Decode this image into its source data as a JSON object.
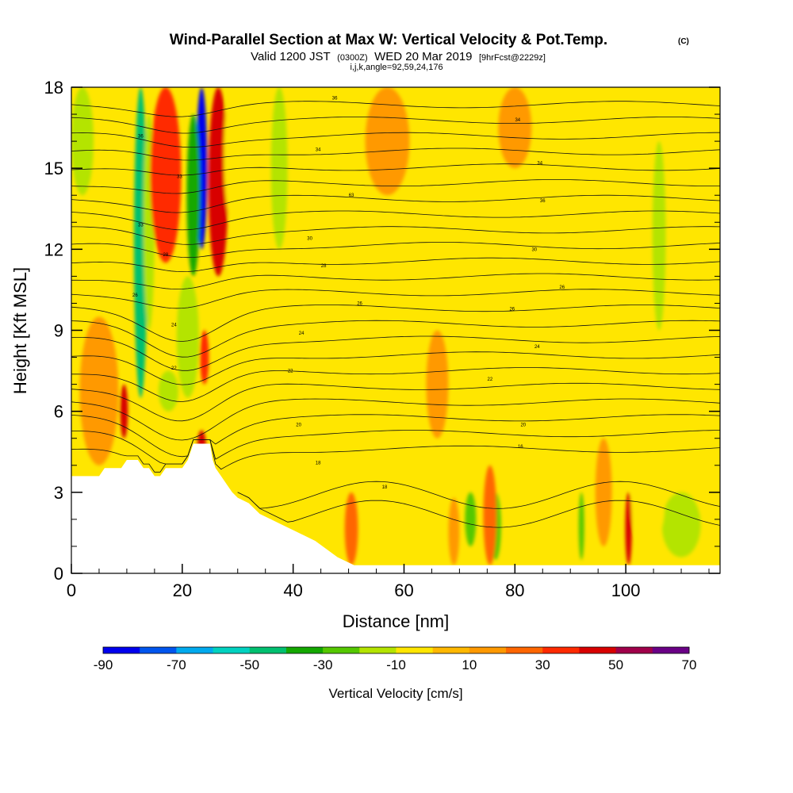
{
  "chart_data": {
    "type": "heatmap",
    "title": "Wind-Parallel Section at Max W: Vertical Velocity & Pot.Temp.",
    "copyright": "(C)",
    "subtitle": {
      "valid_prefix": "Valid 1200 JST",
      "utc": "(0300Z)",
      "date": "WED 20 Mar 2019",
      "forecast": "[9hrFcst@2229z]"
    },
    "indices": "i,j,k,angle=92,59,24,176",
    "xlabel": "Distance [nm]",
    "ylabel": "Height [Kft MSL]",
    "xlim": [
      0,
      117
    ],
    "ylim": [
      0,
      18
    ],
    "x_ticks": [
      "0",
      "20",
      "40",
      "60",
      "80",
      "100"
    ],
    "y_ticks": [
      "0",
      "3",
      "6",
      "9",
      "12",
      "15",
      "18"
    ],
    "colorbar": {
      "label": "Vertical Velocity [cm/s]",
      "tick_labels": [
        "-90",
        "-70",
        "-50",
        "-30",
        "-10",
        "10",
        "30",
        "50",
        "70"
      ],
      "bounds": [
        -90,
        70
      ],
      "colors": [
        "#0000ee",
        "#0055ee",
        "#00aaee",
        "#00d2c0",
        "#00c070",
        "#14a800",
        "#55c800",
        "#b4e400",
        "#ffe600",
        "#ffb800",
        "#ff9900",
        "#ff6600",
        "#ff2a00",
        "#d80000",
        "#a0004a",
        "#6a0086"
      ]
    },
    "terrain_nm_kft": [
      [
        0,
        3.6
      ],
      [
        5,
        3.6
      ],
      [
        6,
        3.9
      ],
      [
        9,
        3.9
      ],
      [
        10,
        4.2
      ],
      [
        12,
        4.2
      ],
      [
        13,
        3.9
      ],
      [
        14,
        3.9
      ],
      [
        15,
        3.6
      ],
      [
        16,
        3.6
      ],
      [
        17,
        3.9
      ],
      [
        20,
        3.9
      ],
      [
        21,
        4.2
      ],
      [
        22,
        4.8
      ],
      [
        25,
        4.8
      ],
      [
        25.5,
        4.2
      ],
      [
        26,
        3.9
      ],
      [
        27,
        3.6
      ],
      [
        28,
        3.3
      ],
      [
        29,
        3.0
      ],
      [
        30,
        2.8
      ],
      [
        32,
        2.6
      ],
      [
        34,
        2.2
      ],
      [
        36,
        2.0
      ],
      [
        38,
        1.8
      ],
      [
        40,
        1.6
      ],
      [
        42,
        1.4
      ],
      [
        44,
        1.2
      ],
      [
        46,
        0.9
      ],
      [
        48,
        0.6
      ],
      [
        50,
        0.4
      ],
      [
        51,
        0.3
      ],
      [
        117,
        0.3
      ]
    ],
    "theta_contours": {
      "units": "potential temperature",
      "labels": [
        {
          "x": 47.5,
          "y": 17.6,
          "text": "36"
        },
        {
          "x": 80.5,
          "y": 16.8,
          "text": "34"
        },
        {
          "x": 44.5,
          "y": 15.7,
          "text": "34"
        },
        {
          "x": 84.5,
          "y": 15.2,
          "text": "34"
        },
        {
          "x": 50.5,
          "y": 14.0,
          "text": "63"
        },
        {
          "x": 85.0,
          "y": 13.8,
          "text": "36"
        },
        {
          "x": 43.0,
          "y": 12.4,
          "text": "30"
        },
        {
          "x": 83.5,
          "y": 12.0,
          "text": "30"
        },
        {
          "x": 45.5,
          "y": 11.4,
          "text": "28"
        },
        {
          "x": 88.5,
          "y": 10.6,
          "text": "26"
        },
        {
          "x": 52.0,
          "y": 10.0,
          "text": "26"
        },
        {
          "x": 79.5,
          "y": 9.8,
          "text": "26"
        },
        {
          "x": 41.5,
          "y": 8.9,
          "text": "24"
        },
        {
          "x": 84.0,
          "y": 8.4,
          "text": "24"
        },
        {
          "x": 39.5,
          "y": 7.5,
          "text": "22"
        },
        {
          "x": 75.5,
          "y": 7.2,
          "text": "22"
        },
        {
          "x": 41.0,
          "y": 5.5,
          "text": "20"
        },
        {
          "x": 81.5,
          "y": 5.5,
          "text": "20"
        },
        {
          "x": 81.0,
          "y": 4.7,
          "text": "16"
        },
        {
          "x": 44.5,
          "y": 4.1,
          "text": "18"
        },
        {
          "x": 56.5,
          "y": 3.2,
          "text": "18"
        },
        {
          "x": 12.5,
          "y": 16.2,
          "text": "36"
        },
        {
          "x": 19.5,
          "y": 14.7,
          "text": "33"
        },
        {
          "x": 12.5,
          "y": 12.9,
          "text": "33"
        },
        {
          "x": 17.0,
          "y": 11.8,
          "text": "28"
        },
        {
          "x": 11.5,
          "y": 10.3,
          "text": "26"
        },
        {
          "x": 18.5,
          "y": 9.2,
          "text": "24"
        },
        {
          "x": 18.5,
          "y": 7.6,
          "text": "22"
        }
      ]
    },
    "velocity_features": [
      {
        "x": 12.5,
        "hw": 1.2,
        "y0": 6.5,
        "y1": 18,
        "w": -45
      },
      {
        "x": 14.0,
        "hw": 1.0,
        "y0": 9,
        "y1": 17,
        "w": -20
      },
      {
        "x": 17.0,
        "hw": 2.8,
        "y0": 11.5,
        "y1": 18,
        "w": 35
      },
      {
        "x": 23.5,
        "hw": 1.0,
        "y0": 12,
        "y1": 18,
        "w": -90
      },
      {
        "x": 22.0,
        "hw": 1.2,
        "y0": 11,
        "y1": 17,
        "w": -40
      },
      {
        "x": 21.0,
        "hw": 2.0,
        "y0": 6.5,
        "y1": 11,
        "w": -20
      },
      {
        "x": 26.5,
        "hw": 1.8,
        "y0": 11,
        "y1": 18,
        "w": 40
      },
      {
        "x": 24.0,
        "hw": 0.8,
        "y0": 7,
        "y1": 9,
        "w": 35
      },
      {
        "x": 9.5,
        "hw": 0.7,
        "y0": 5,
        "y1": 7,
        "w": 45
      },
      {
        "x": 17.5,
        "hw": 1.8,
        "y0": 6,
        "y1": 7.5,
        "w": -15
      },
      {
        "x": 23.5,
        "hw": 0.8,
        "y0": 4,
        "y1": 5.3,
        "w": 45
      },
      {
        "x": 29.0,
        "hw": 1.5,
        "y0": 13,
        "y1": 18,
        "w": -10
      },
      {
        "x": 37.5,
        "hw": 1.5,
        "y0": 12,
        "y1": 18,
        "w": -12
      },
      {
        "x": 50.5,
        "hw": 1.2,
        "y0": 0.3,
        "y1": 3,
        "w": 25
      },
      {
        "x": 72.0,
        "hw": 1.0,
        "y0": 1,
        "y1": 3,
        "w": -30
      },
      {
        "x": 76.5,
        "hw": 1.0,
        "y0": 0.5,
        "y1": 3,
        "w": -30
      },
      {
        "x": 75.5,
        "hw": 1.2,
        "y0": 0.3,
        "y1": 4,
        "w": 25
      },
      {
        "x": 92.0,
        "hw": 0.5,
        "y0": 0.5,
        "y1": 3,
        "w": -25
      },
      {
        "x": 100.5,
        "hw": 0.6,
        "y0": 0.3,
        "y1": 3,
        "w": 40
      },
      {
        "x": 110.0,
        "hw": 3.5,
        "y0": 0.6,
        "y1": 3,
        "w": -20
      },
      {
        "x": 104.0,
        "hw": 3.0,
        "y0": 1,
        "y1": 4,
        "w": -10
      },
      {
        "x": 90.5,
        "hw": 1.2,
        "y0": 12,
        "y1": 18,
        "w": -10
      },
      {
        "x": 106.0,
        "hw": 1.2,
        "y0": 9,
        "y1": 16,
        "w": -12
      },
      {
        "x": 112.0,
        "hw": 1.8,
        "y0": 12,
        "y1": 18,
        "w": -10
      },
      {
        "x": 2.0,
        "hw": 2.0,
        "y0": 14,
        "y1": 18,
        "w": -15
      },
      {
        "x": 5.0,
        "hw": 3.5,
        "y0": 4,
        "y1": 9.5,
        "w": 12
      },
      {
        "x": 57.0,
        "hw": 4.0,
        "y0": 14,
        "y1": 18,
        "w": 12
      },
      {
        "x": 80.0,
        "hw": 3.0,
        "y0": 15,
        "y1": 18,
        "w": 12
      },
      {
        "x": 66.0,
        "hw": 2.0,
        "y0": 5,
        "y1": 9,
        "w": 12
      },
      {
        "x": 96.0,
        "hw": 1.5,
        "y0": 1,
        "y1": 5,
        "w": 15
      },
      {
        "x": 69.0,
        "hw": 1.0,
        "y0": 0.3,
        "y1": 2.8,
        "w": 15
      }
    ]
  }
}
